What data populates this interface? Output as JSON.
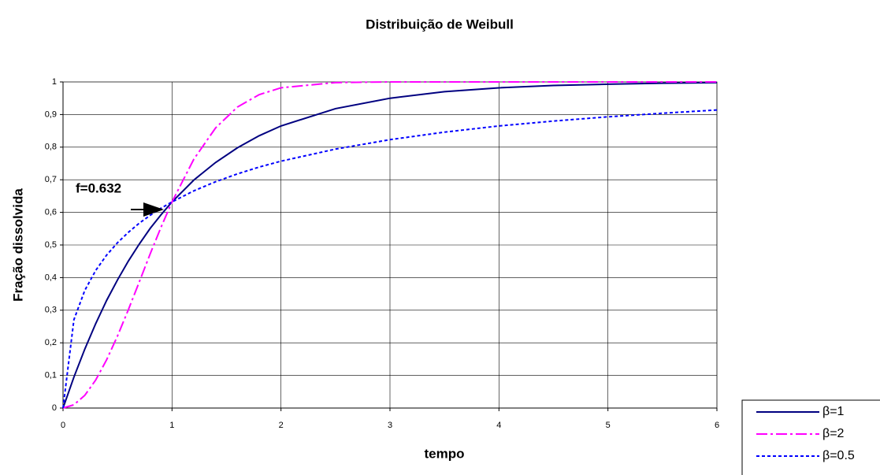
{
  "chart_data": {
    "type": "line",
    "title": "Distribuição de Weibull",
    "x_label": "tempo",
    "y_label": "Fração dissolvida",
    "annotation": "f=0.632",
    "x": [
      0,
      0.1,
      0.2,
      0.3,
      0.4,
      0.5,
      0.6,
      0.7,
      0.8,
      0.9,
      1,
      1.2,
      1.4,
      1.6,
      1.8,
      2,
      2.5,
      3,
      3.5,
      4,
      4.5,
      5,
      5.5,
      6
    ],
    "series": [
      {
        "name": "β=1",
        "color": "#000080",
        "values": [
          0,
          0.095,
          0.181,
          0.259,
          0.33,
          0.393,
          0.451,
          0.503,
          0.551,
          0.593,
          0.632,
          0.699,
          0.753,
          0.798,
          0.835,
          0.865,
          0.918,
          0.95,
          0.97,
          0.982,
          0.989,
          0.993,
          0.996,
          0.998
        ]
      },
      {
        "name": "β=2",
        "color": "#ff00ff",
        "values": [
          0,
          0.01,
          0.039,
          0.086,
          0.148,
          0.221,
          0.302,
          0.387,
          0.473,
          0.555,
          0.632,
          0.763,
          0.859,
          0.923,
          0.961,
          0.982,
          0.998,
          1,
          1,
          1,
          1,
          1,
          1,
          1
        ]
      },
      {
        "name": "β=0.5",
        "color": "#0000ff",
        "values": [
          0,
          0.271,
          0.361,
          0.422,
          0.469,
          0.507,
          0.539,
          0.567,
          0.591,
          0.613,
          0.632,
          0.666,
          0.694,
          0.718,
          0.739,
          0.757,
          0.794,
          0.823,
          0.846,
          0.865,
          0.88,
          0.893,
          0.904,
          0.914
        ]
      }
    ],
    "xlim": [
      0,
      6
    ],
    "xticks": [
      0,
      1,
      2,
      3,
      4,
      5,
      6
    ],
    "ylim": [
      0,
      1
    ],
    "yticks": [
      0,
      {
        "value": 0.1,
        "label": "0,1"
      },
      {
        "value": 0.2,
        "label": "0,2"
      },
      {
        "value": 0.3,
        "label": "0,3"
      },
      {
        "value": 0.4,
        "label": "0,4"
      },
      {
        "value": 0.5,
        "label": "0,5"
      },
      {
        "value": 0.6,
        "label": "0,6"
      },
      {
        "value": 0.7,
        "label": "0,7"
      },
      {
        "value": 0.8,
        "label": "0,8"
      },
      {
        "value": 0.9,
        "label": "0,9"
      },
      1
    ],
    "grid": true
  }
}
